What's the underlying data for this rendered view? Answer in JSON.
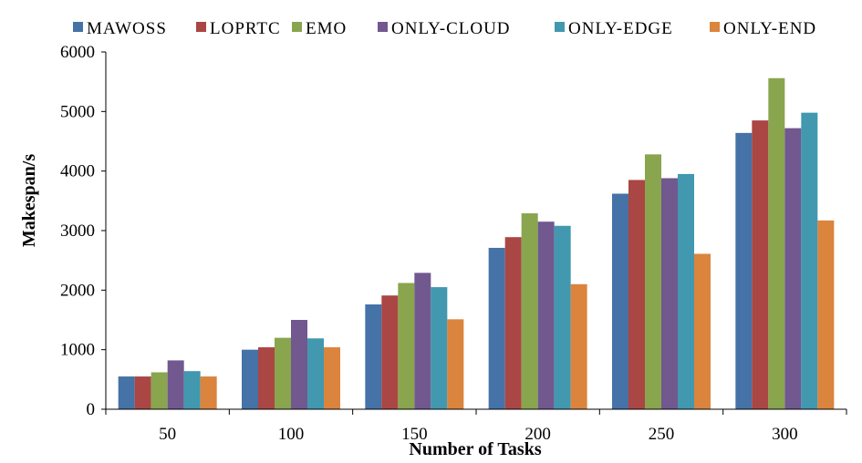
{
  "chart_data": {
    "type": "bar",
    "title": "",
    "xlabel": "Number of Tasks",
    "ylabel": "Makespan/s",
    "ylim": [
      0,
      6000
    ],
    "yticks": [
      0,
      1000,
      2000,
      3000,
      4000,
      5000,
      6000
    ],
    "categories": [
      "50",
      "100",
      "150",
      "200",
      "250",
      "300"
    ],
    "grid": false,
    "legend_position": "top",
    "series": [
      {
        "name": "MAWOSS",
        "color": "#4572A7",
        "values": [
          550,
          1000,
          1760,
          2710,
          3620,
          4640
        ]
      },
      {
        "name": "LOPRTC",
        "color": "#AA4643",
        "values": [
          550,
          1040,
          1910,
          2890,
          3850,
          4850
        ]
      },
      {
        "name": "EMO",
        "color": "#89A54E",
        "values": [
          620,
          1200,
          2120,
          3290,
          4280,
          5560
        ]
      },
      {
        "name": "ONLY-CLOUD",
        "color": "#71588F",
        "values": [
          820,
          1500,
          2290,
          3150,
          3880,
          4720
        ]
      },
      {
        "name": "ONLY-EDGE",
        "color": "#4198AF",
        "values": [
          640,
          1190,
          2050,
          3080,
          3950,
          4980
        ]
      },
      {
        "name": "ONLY-END",
        "color": "#DB843D",
        "values": [
          550,
          1040,
          1510,
          2100,
          2610,
          3170
        ]
      }
    ]
  }
}
